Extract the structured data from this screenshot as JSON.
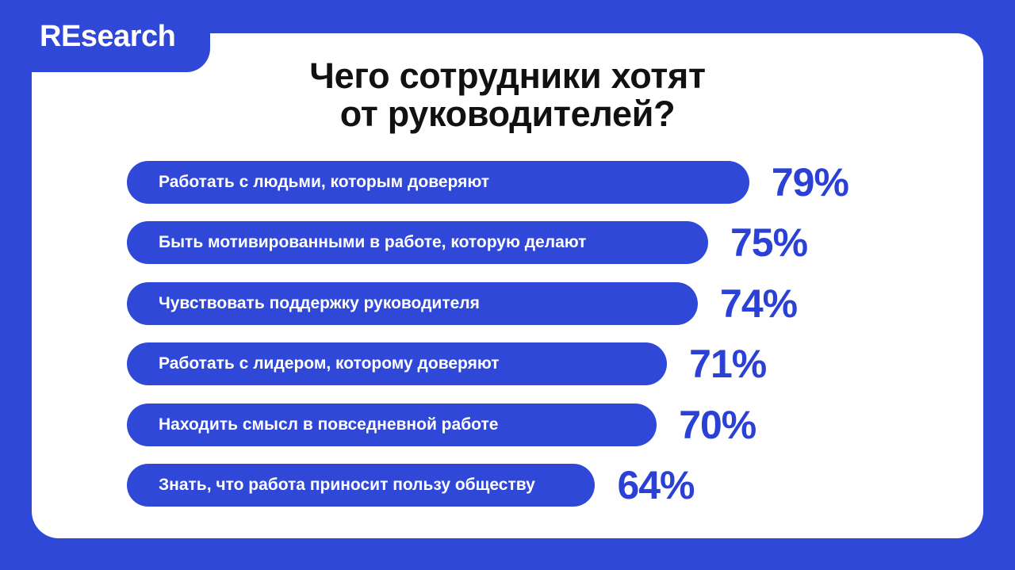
{
  "brand": "REsearch",
  "title_line1": "Чего сотрудники хотят",
  "title_line2": "от руководителей?",
  "colors": {
    "background": "#3048d8",
    "bar": "#3048d8",
    "value_text": "#2b40d4",
    "card": "#ffffff"
  },
  "chart_data": {
    "type": "bar",
    "orientation": "horizontal",
    "categories": [
      "Работать с людьми, которым доверяют",
      "Быть мотивированными в работе, которую делают",
      "Чувствовать поддержку руководителя",
      "Работать с лидером, которому доверяют",
      "Находить смысл в повседневной работе",
      "Знать, что работа приносит пользу обществу"
    ],
    "values": [
      79,
      75,
      74,
      71,
      70,
      64
    ],
    "value_labels": [
      "79%",
      "75%",
      "74%",
      "71%",
      "70%",
      "64%"
    ]
  }
}
